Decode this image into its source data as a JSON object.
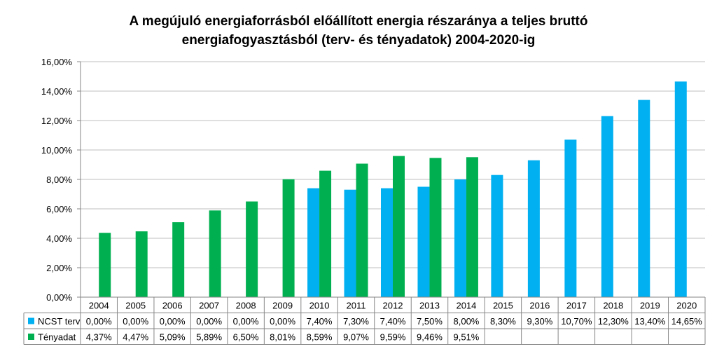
{
  "chart_data": {
    "type": "bar",
    "title_lines": [
      "A megújuló energiaforrásból előállított energia részaránya a teljes bruttó",
      "energiafogyasztásból (terv- és tényadatok) 2004-2020-ig"
    ],
    "categories": [
      "2004",
      "2005",
      "2006",
      "2007",
      "2008",
      "2009",
      "2010",
      "2011",
      "2012",
      "2013",
      "2014",
      "2015",
      "2016",
      "2017",
      "2018",
      "2019",
      "2020"
    ],
    "ylim": [
      0,
      16
    ],
    "y_ticks": [
      "0,00%",
      "2,00%",
      "4,00%",
      "6,00%",
      "8,00%",
      "10,00%",
      "12,00%",
      "14,00%",
      "16,00%"
    ],
    "grid": true,
    "legend": "data-table-left",
    "series": [
      {
        "name": "NCST terv",
        "color": "#00B0F0",
        "values": [
          0.0,
          0.0,
          0.0,
          0.0,
          0.0,
          0.0,
          7.4,
          7.3,
          7.4,
          7.5,
          8.0,
          8.3,
          9.3,
          10.7,
          12.3,
          13.4,
          14.65
        ],
        "labels": [
          "0,00%",
          "0,00%",
          "0,00%",
          "0,00%",
          "0,00%",
          "0,00%",
          "7,40%",
          "7,30%",
          "7,40%",
          "7,50%",
          "8,00%",
          "8,30%",
          "9,30%",
          "10,70%",
          "12,30%",
          "13,40%",
          "14,65%"
        ]
      },
      {
        "name": "Tényadat",
        "color": "#00B050",
        "values": [
          4.37,
          4.47,
          5.09,
          5.89,
          6.5,
          8.01,
          8.59,
          9.07,
          9.59,
          9.46,
          9.51,
          null,
          null,
          null,
          null,
          null,
          null
        ],
        "labels": [
          "4,37%",
          "4,47%",
          "5,09%",
          "5,89%",
          "6,50%",
          "8,01%",
          "8,59%",
          "9,07%",
          "9,59%",
          "9,46%",
          "9,51%",
          "",
          "",
          "",
          "",
          "",
          ""
        ]
      }
    ]
  }
}
